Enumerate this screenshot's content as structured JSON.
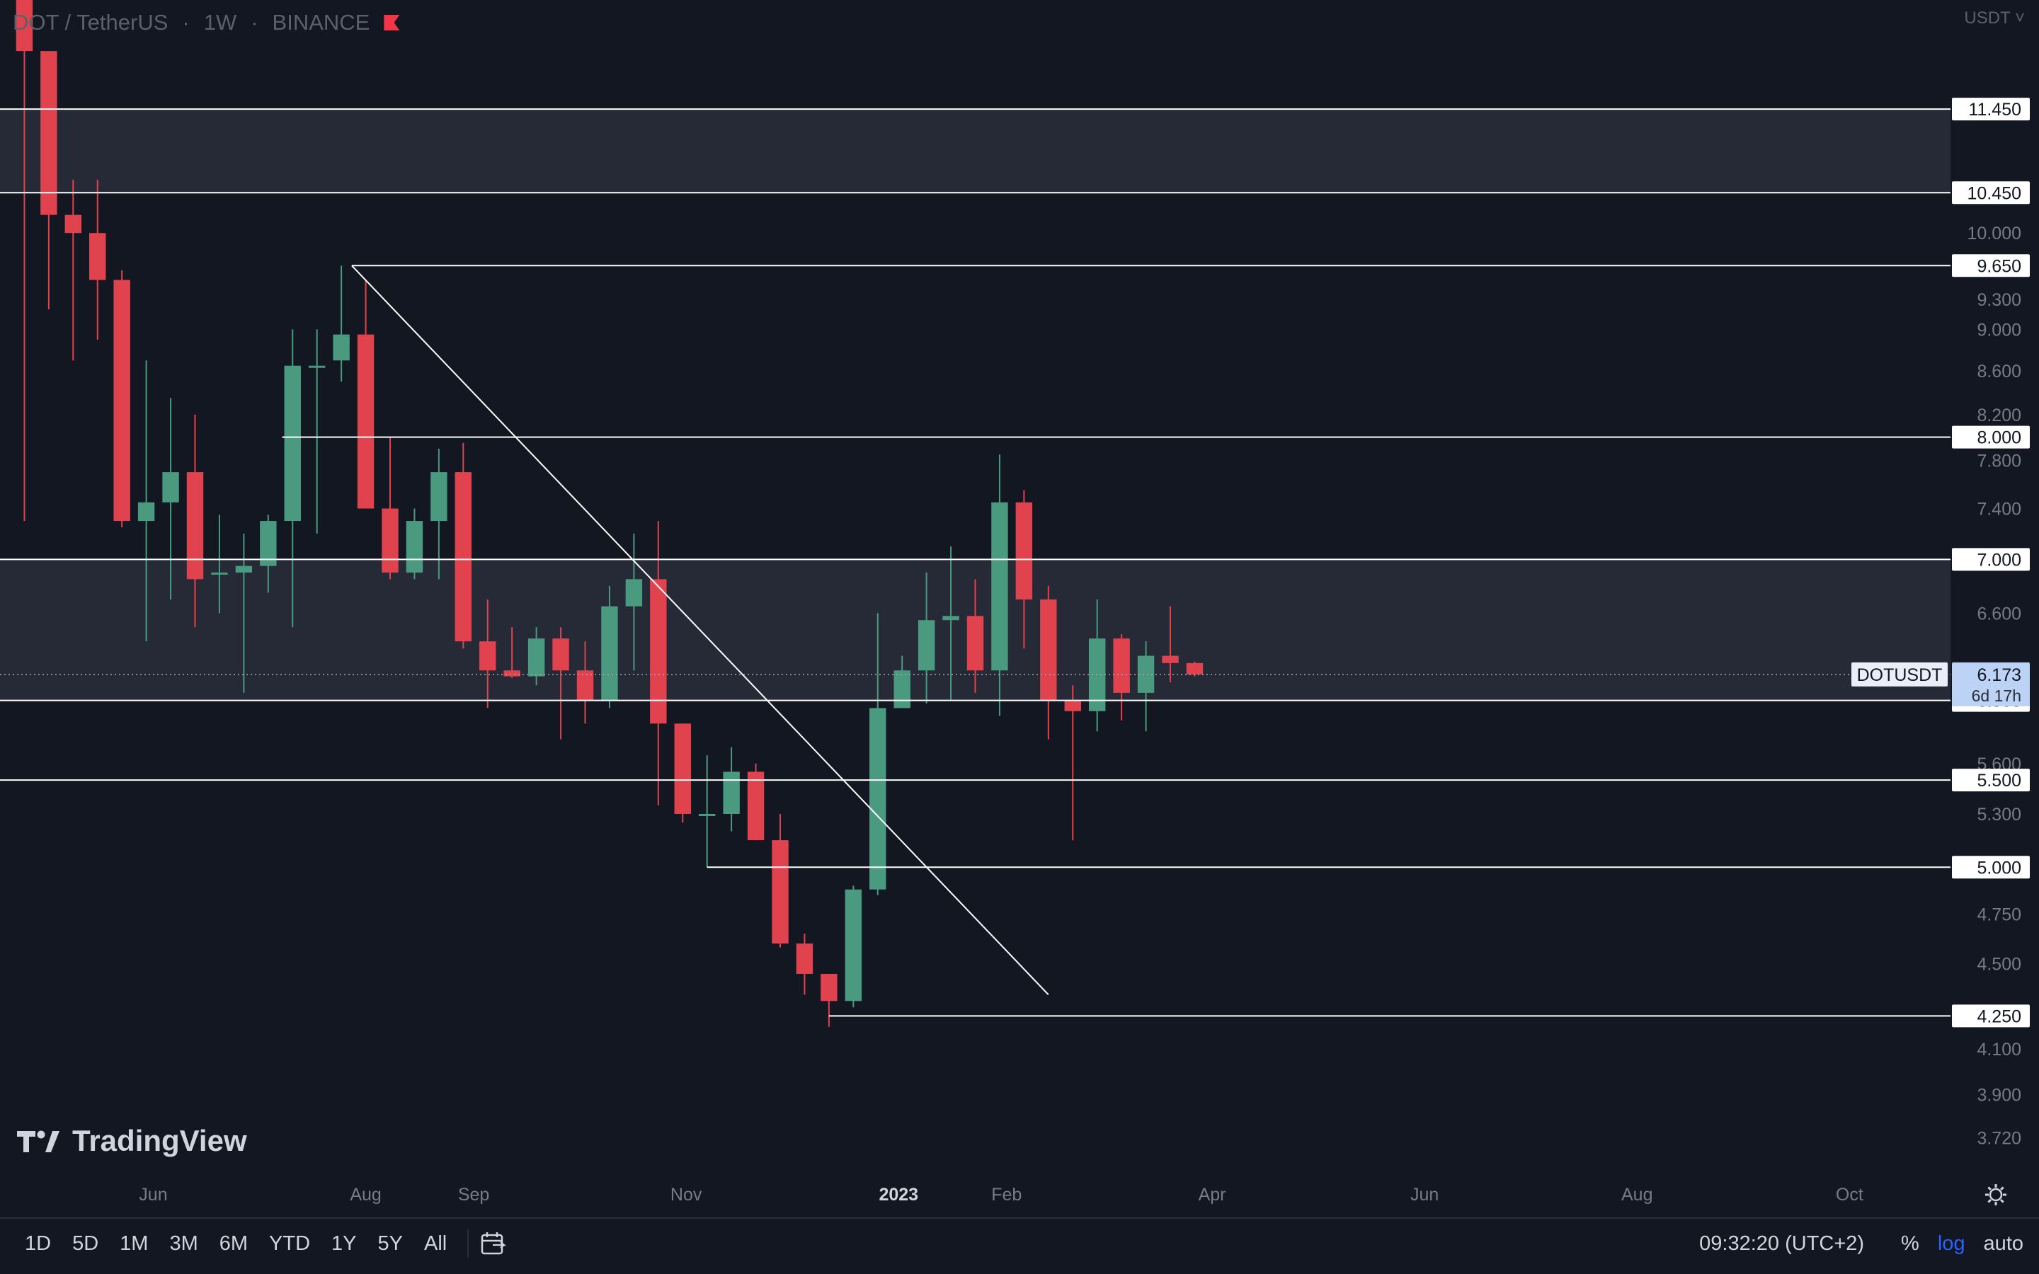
{
  "header": {
    "symbol": "DOT / TetherUS",
    "interval": "1W",
    "exchange": "BINANCE",
    "separator": "·"
  },
  "currency": "USDT",
  "brand": {
    "name": "TradingView"
  },
  "price_label": {
    "symbol": "DOTUSDT",
    "price": "6.173",
    "countdown": "6d 17h"
  },
  "toolbar": {
    "ranges": [
      "1D",
      "5D",
      "1M",
      "3M",
      "6M",
      "YTD",
      "1Y",
      "5Y",
      "All"
    ],
    "time": "09:32:20 (UTC+2)",
    "percent": "%",
    "log": "log",
    "auto": "auto"
  },
  "colors": {
    "up": "#4a9a80",
    "down": "#e0434e",
    "background": "#131722",
    "zone": "#2a2e39",
    "line": "#ffffff",
    "accent": "#2962ff"
  },
  "chart_data": {
    "type": "candlestick",
    "symbol": "DOTUSDT",
    "interval": "1W",
    "scale": "log",
    "ylim": [
      3.6,
      12.9
    ],
    "xlim": [
      "2022-04-18",
      "2023-10-30"
    ],
    "y_tick_labels": [
      "11.450",
      "10.450",
      "10.000",
      "9.650",
      "9.300",
      "9.000",
      "8.600",
      "8.200",
      "8.000",
      "7.800",
      "7.400",
      "7.000",
      "6.600",
      "6.000",
      "5.600",
      "5.500",
      "5.300",
      "5.000",
      "4.750",
      "4.500",
      "4.250",
      "4.100",
      "3.900",
      "3.720"
    ],
    "x_tick_labels": [
      {
        "label": "Jun",
        "date": "2022-06-01"
      },
      {
        "label": "Aug",
        "date": "2022-08-01"
      },
      {
        "label": "Sep",
        "date": "2022-09-01"
      },
      {
        "label": "Nov",
        "date": "2022-11-01"
      },
      {
        "label": "2023",
        "date": "2023-01-01"
      },
      {
        "label": "Feb",
        "date": "2023-02-01"
      },
      {
        "label": "Apr",
        "date": "2023-04-01"
      },
      {
        "label": "Jun",
        "date": "2023-06-01"
      },
      {
        "label": "Aug",
        "date": "2023-08-01"
      },
      {
        "label": "Oct",
        "date": "2023-10-01"
      }
    ],
    "candles": [
      {
        "date": "2022-04-25",
        "open": 14.5,
        "high": 15.5,
        "low": 7.3,
        "close": 12.2
      },
      {
        "date": "2022-05-02",
        "open": 12.2,
        "high": 12.2,
        "low": 9.2,
        "close": 10.2
      },
      {
        "date": "2022-05-09",
        "open": 10.2,
        "high": 10.6,
        "low": 8.7,
        "close": 10.0
      },
      {
        "date": "2022-05-16",
        "open": 10.0,
        "high": 10.6,
        "low": 8.9,
        "close": 9.5
      },
      {
        "date": "2022-05-23",
        "open": 9.5,
        "high": 9.6,
        "low": 7.25,
        "close": 7.3
      },
      {
        "date": "2022-05-30",
        "open": 7.3,
        "high": 8.7,
        "low": 6.4,
        "close": 7.45
      },
      {
        "date": "2022-06-06",
        "open": 7.45,
        "high": 8.35,
        "low": 6.7,
        "close": 7.7
      },
      {
        "date": "2022-06-13",
        "open": 7.7,
        "high": 8.2,
        "low": 6.5,
        "close": 6.85
      },
      {
        "date": "2022-06-20",
        "open": 6.9,
        "high": 7.35,
        "low": 6.6,
        "close": 6.9
      },
      {
        "date": "2022-06-27",
        "open": 6.9,
        "high": 7.2,
        "low": 6.05,
        "close": 6.95
      },
      {
        "date": "2022-07-04",
        "open": 6.95,
        "high": 7.35,
        "low": 6.75,
        "close": 7.3
      },
      {
        "date": "2022-07-11",
        "open": 7.3,
        "high": 9.0,
        "low": 6.5,
        "close": 8.65
      },
      {
        "date": "2022-07-18",
        "open": 8.65,
        "high": 9.0,
        "low": 7.2,
        "close": 8.65
      },
      {
        "date": "2022-07-25",
        "open": 8.7,
        "high": 9.65,
        "low": 8.5,
        "close": 8.95
      },
      {
        "date": "2022-08-01",
        "open": 8.95,
        "high": 9.5,
        "low": 7.4,
        "close": 7.4
      },
      {
        "date": "2022-08-08",
        "open": 7.4,
        "high": 8.0,
        "low": 6.85,
        "close": 6.9
      },
      {
        "date": "2022-08-15",
        "open": 6.9,
        "high": 7.4,
        "low": 6.85,
        "close": 7.3
      },
      {
        "date": "2022-08-22",
        "open": 7.3,
        "high": 7.9,
        "low": 6.85,
        "close": 7.7
      },
      {
        "date": "2022-08-29",
        "open": 7.7,
        "high": 7.95,
        "low": 6.35,
        "close": 6.4
      },
      {
        "date": "2022-09-05",
        "open": 6.4,
        "high": 6.7,
        "low": 5.95,
        "close": 6.2
      },
      {
        "date": "2022-09-12",
        "open": 6.2,
        "high": 6.5,
        "low": 6.15,
        "close": 6.16
      },
      {
        "date": "2022-09-19",
        "open": 6.16,
        "high": 6.5,
        "low": 6.1,
        "close": 6.42
      },
      {
        "date": "2022-09-26",
        "open": 6.42,
        "high": 6.5,
        "low": 5.75,
        "close": 6.2
      },
      {
        "date": "2022-10-03",
        "open": 6.2,
        "high": 6.4,
        "low": 5.85,
        "close": 6.0
      },
      {
        "date": "2022-10-10",
        "open": 6.0,
        "high": 6.8,
        "low": 5.95,
        "close": 6.65
      },
      {
        "date": "2022-10-17",
        "open": 6.65,
        "high": 7.2,
        "low": 6.2,
        "close": 6.85
      },
      {
        "date": "2022-10-24",
        "open": 6.85,
        "high": 7.3,
        "low": 5.35,
        "close": 5.85
      },
      {
        "date": "2022-10-31",
        "open": 5.85,
        "high": 5.85,
        "low": 5.25,
        "close": 5.3
      },
      {
        "date": "2022-11-07",
        "open": 5.3,
        "high": 5.65,
        "low": 5.0,
        "close": 5.3
      },
      {
        "date": "2022-11-14",
        "open": 5.3,
        "high": 5.7,
        "low": 5.2,
        "close": 5.55
      },
      {
        "date": "2022-11-21",
        "open": 5.55,
        "high": 5.6,
        "low": 5.15,
        "close": 5.15
      },
      {
        "date": "2022-11-28",
        "open": 5.15,
        "high": 5.3,
        "low": 4.58,
        "close": 4.6
      },
      {
        "date": "2022-12-05",
        "open": 4.6,
        "high": 4.65,
        "low": 4.35,
        "close": 4.45
      },
      {
        "date": "2022-12-12",
        "open": 4.45,
        "high": 4.45,
        "low": 4.2,
        "close": 4.32
      },
      {
        "date": "2022-12-19",
        "open": 4.32,
        "high": 4.9,
        "low": 4.29,
        "close": 4.88
      },
      {
        "date": "2022-12-26",
        "open": 4.88,
        "high": 6.6,
        "low": 4.85,
        "close": 5.95
      },
      {
        "date": "2023-01-02",
        "open": 5.95,
        "high": 6.3,
        "low": 5.95,
        "close": 6.2
      },
      {
        "date": "2023-01-09",
        "open": 6.2,
        "high": 6.9,
        "low": 5.98,
        "close": 6.55
      },
      {
        "date": "2023-01-16",
        "open": 6.55,
        "high": 7.1,
        "low": 6.0,
        "close": 6.58
      },
      {
        "date": "2023-01-23",
        "open": 6.58,
        "high": 6.85,
        "low": 6.05,
        "close": 6.2
      },
      {
        "date": "2023-01-30",
        "open": 6.2,
        "high": 7.85,
        "low": 5.9,
        "close": 7.45
      },
      {
        "date": "2023-02-06",
        "open": 7.45,
        "high": 7.55,
        "low": 6.35,
        "close": 6.7
      },
      {
        "date": "2023-02-13",
        "open": 6.7,
        "high": 6.8,
        "low": 5.75,
        "close": 6.0
      },
      {
        "date": "2023-02-20",
        "open": 6.0,
        "high": 6.1,
        "low": 5.15,
        "close": 5.93
      },
      {
        "date": "2023-02-27",
        "open": 5.93,
        "high": 6.7,
        "low": 5.8,
        "close": 6.42
      },
      {
        "date": "2023-03-06",
        "open": 6.42,
        "high": 6.45,
        "low": 5.87,
        "close": 6.05
      },
      {
        "date": "2023-03-13",
        "open": 6.05,
        "high": 6.4,
        "low": 5.8,
        "close": 6.3
      },
      {
        "date": "2023-03-20",
        "open": 6.3,
        "high": 6.65,
        "low": 6.12,
        "close": 6.25
      },
      {
        "date": "2023-03-27",
        "open": 6.25,
        "high": 6.26,
        "low": 6.16,
        "close": 6.173
      }
    ],
    "zones": [
      {
        "from": 10.45,
        "to": 11.45
      },
      {
        "from": 6.0,
        "to": 7.0
      }
    ],
    "levels": [
      {
        "value": 11.45,
        "label": "11.450",
        "start": "2022-04-04"
      },
      {
        "value": 10.45,
        "label": "10.450",
        "start": "2022-04-04"
      },
      {
        "value": 9.65,
        "label": "9.650",
        "start": "2022-07-28"
      },
      {
        "value": 8.0,
        "label": "8.000",
        "start": "2022-07-08"
      },
      {
        "value": 7.0,
        "label": "7.000",
        "start": "2022-04-04"
      },
      {
        "value": 6.0,
        "label": "6.000",
        "start": "2022-04-04"
      },
      {
        "value": 5.5,
        "label": "5.500",
        "start": "2022-04-04"
      },
      {
        "value": 5.0,
        "label": "5.000",
        "start": "2022-11-07"
      },
      {
        "value": 4.25,
        "label": "4.250",
        "start": "2022-12-12"
      }
    ],
    "trendline": {
      "from": {
        "date": "2022-07-28",
        "value": 9.65
      },
      "to": {
        "date": "2023-02-13",
        "value": 4.35
      }
    },
    "current_price": 6.173
  }
}
